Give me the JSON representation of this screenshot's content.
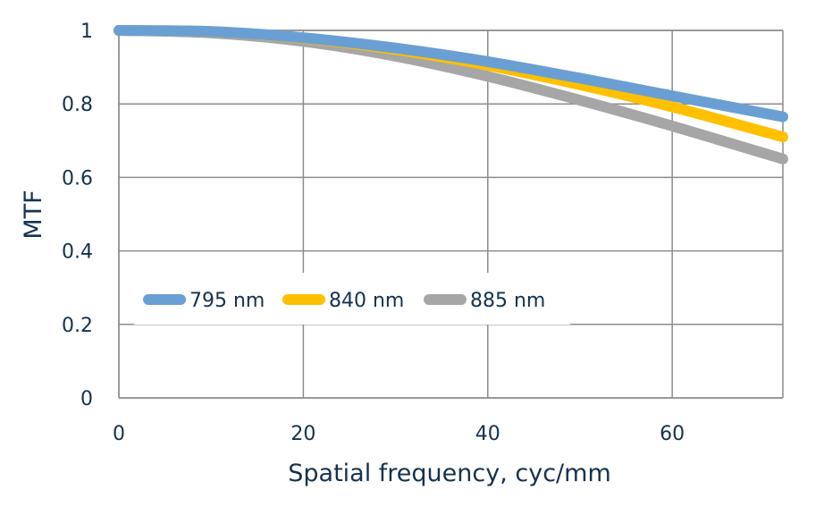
{
  "chart_data": {
    "type": "line",
    "title": "",
    "xlabel": "Spatial frequency, cyc/mm",
    "ylabel": "MTF",
    "xlim": [
      0,
      72
    ],
    "ylim": [
      0,
      1
    ],
    "x_ticks": [
      "0",
      "20",
      "40",
      "60"
    ],
    "y_ticks": [
      "0",
      "0.2",
      "0.4",
      "0.6",
      "0.8",
      "1"
    ],
    "grid": true,
    "legend_position": "lower-left",
    "series": [
      {
        "name": "795 nm",
        "color": "#6a9fd4",
        "x": [
          0,
          10,
          20,
          30,
          40,
          50,
          60,
          72
        ],
        "y": [
          1.0,
          0.997,
          0.98,
          0.952,
          0.915,
          0.87,
          0.822,
          0.765
        ]
      },
      {
        "name": "840 nm",
        "color": "#ffc000",
        "x": [
          0,
          10,
          20,
          30,
          40,
          50,
          60,
          72
        ],
        "y": [
          1.0,
          0.997,
          0.979,
          0.948,
          0.905,
          0.852,
          0.792,
          0.71
        ]
      },
      {
        "name": "885 nm",
        "color": "#a6a6a6",
        "x": [
          0,
          10,
          20,
          30,
          40,
          50,
          60,
          72
        ],
        "y": [
          1.0,
          0.993,
          0.97,
          0.93,
          0.875,
          0.81,
          0.74,
          0.65
        ]
      }
    ]
  }
}
